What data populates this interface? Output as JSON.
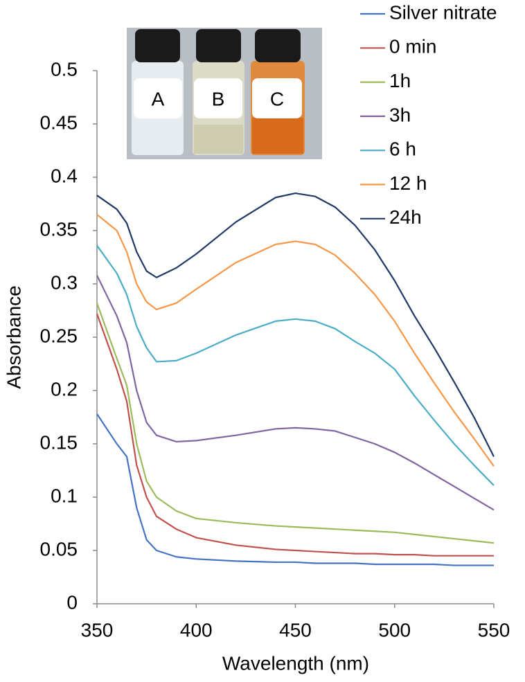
{
  "chart_data": {
    "type": "line",
    "x_label": "Wavelength (nm)",
    "y_label": "Absorbance",
    "annotations": [
      "A",
      "B",
      "C"
    ],
    "x": [
      350,
      360,
      365,
      370,
      375,
      380,
      390,
      400,
      420,
      440,
      450,
      460,
      470,
      480,
      490,
      500,
      510,
      520,
      530,
      540,
      550
    ],
    "series": [
      {
        "name": "Silver nitrate",
        "color": "#4472c4",
        "values": [
          0.178,
          0.15,
          0.138,
          0.09,
          0.06,
          0.05,
          0.044,
          0.042,
          0.04,
          0.039,
          0.039,
          0.038,
          0.038,
          0.038,
          0.037,
          0.037,
          0.037,
          0.037,
          0.036,
          0.036,
          0.036
        ]
      },
      {
        "name": "0 min",
        "color": "#c0504d",
        "values": [
          0.272,
          0.22,
          0.19,
          0.13,
          0.1,
          0.082,
          0.07,
          0.062,
          0.055,
          0.051,
          0.05,
          0.049,
          0.048,
          0.047,
          0.047,
          0.046,
          0.046,
          0.045,
          0.045,
          0.045,
          0.045
        ]
      },
      {
        "name": "1h",
        "color": "#9bbb59",
        "values": [
          0.282,
          0.23,
          0.205,
          0.15,
          0.115,
          0.1,
          0.087,
          0.08,
          0.076,
          0.073,
          0.072,
          0.071,
          0.07,
          0.069,
          0.068,
          0.067,
          0.065,
          0.063,
          0.061,
          0.059,
          0.057
        ]
      },
      {
        "name": "3h",
        "color": "#8064a2",
        "values": [
          0.308,
          0.27,
          0.245,
          0.2,
          0.17,
          0.158,
          0.152,
          0.153,
          0.158,
          0.164,
          0.165,
          0.164,
          0.162,
          0.156,
          0.15,
          0.142,
          0.132,
          0.121,
          0.11,
          0.099,
          0.088
        ]
      },
      {
        "name": "6 h",
        "color": "#4bacc6",
        "values": [
          0.336,
          0.31,
          0.29,
          0.26,
          0.24,
          0.227,
          0.228,
          0.235,
          0.252,
          0.265,
          0.267,
          0.265,
          0.258,
          0.246,
          0.235,
          0.22,
          0.195,
          0.172,
          0.15,
          0.13,
          0.111
        ]
      },
      {
        "name": "12 h",
        "color": "#f79646",
        "values": [
          0.365,
          0.35,
          0.33,
          0.3,
          0.283,
          0.276,
          0.282,
          0.295,
          0.32,
          0.337,
          0.34,
          0.337,
          0.327,
          0.31,
          0.29,
          0.265,
          0.235,
          0.207,
          0.18,
          0.155,
          0.129
        ]
      },
      {
        "name": "24h",
        "color": "#1f3864",
        "values": [
          0.383,
          0.37,
          0.357,
          0.33,
          0.312,
          0.306,
          0.315,
          0.328,
          0.358,
          0.381,
          0.385,
          0.382,
          0.372,
          0.355,
          0.332,
          0.303,
          0.27,
          0.24,
          0.208,
          0.175,
          0.138
        ]
      }
    ],
    "xlim": [
      350,
      550
    ],
    "xticks": [
      350,
      400,
      450,
      500,
      550
    ],
    "ylim": [
      0,
      0.5
    ],
    "yticks": [
      0,
      0.05,
      0.1,
      0.15,
      0.2,
      0.25,
      0.3,
      0.35,
      0.4,
      0.45,
      0.5
    ],
    "grid": false,
    "legend": "upper right"
  }
}
